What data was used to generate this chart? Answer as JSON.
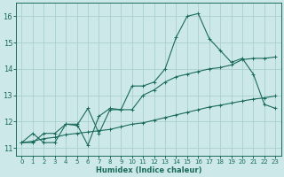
{
  "xlabel": "Humidex (Indice chaleur)",
  "background_color": "#cde8e8",
  "grid_color": "#aacece",
  "line_color": "#1a6b5a",
  "xlim": [
    -0.5,
    23.5
  ],
  "ylim": [
    10.7,
    16.5
  ],
  "xticks": [
    0,
    1,
    2,
    3,
    4,
    5,
    6,
    7,
    8,
    9,
    10,
    11,
    12,
    13,
    14,
    15,
    16,
    17,
    18,
    19,
    20,
    21,
    22,
    23
  ],
  "yticks": [
    11,
    12,
    13,
    14,
    15,
    16
  ],
  "line1_x": [
    0,
    1,
    2,
    3,
    4,
    5,
    6,
    7,
    8,
    9,
    10,
    11,
    12,
    13,
    14,
    15,
    16,
    17,
    18,
    19,
    20,
    21,
    22,
    23
  ],
  "line1_y": [
    11.2,
    11.55,
    11.2,
    11.2,
    11.9,
    11.9,
    11.1,
    12.2,
    12.5,
    12.45,
    13.35,
    13.35,
    13.5,
    14.0,
    15.2,
    16.0,
    16.1,
    15.15,
    14.7,
    14.25,
    14.4,
    13.8,
    12.65,
    12.5
  ],
  "line2_x": [
    0,
    1,
    2,
    3,
    4,
    5,
    6,
    7,
    8,
    9,
    10,
    11,
    12,
    13,
    14,
    15,
    16,
    17,
    18,
    19,
    20,
    21,
    22,
    23
  ],
  "line2_y": [
    11.2,
    11.2,
    11.55,
    11.55,
    11.9,
    11.85,
    12.5,
    11.55,
    12.45,
    12.45,
    12.45,
    13.0,
    13.2,
    13.5,
    13.7,
    13.8,
    13.9,
    14.0,
    14.05,
    14.15,
    14.35,
    14.4,
    14.4,
    14.45
  ],
  "line3_x": [
    0,
    1,
    2,
    3,
    4,
    5,
    6,
    7,
    8,
    9,
    10,
    11,
    12,
    13,
    14,
    15,
    16,
    17,
    18,
    19,
    20,
    21,
    22,
    23
  ],
  "line3_y": [
    11.2,
    11.25,
    11.35,
    11.4,
    11.5,
    11.55,
    11.6,
    11.65,
    11.7,
    11.8,
    11.9,
    11.95,
    12.05,
    12.15,
    12.25,
    12.35,
    12.45,
    12.55,
    12.62,
    12.7,
    12.78,
    12.85,
    12.9,
    12.97
  ]
}
